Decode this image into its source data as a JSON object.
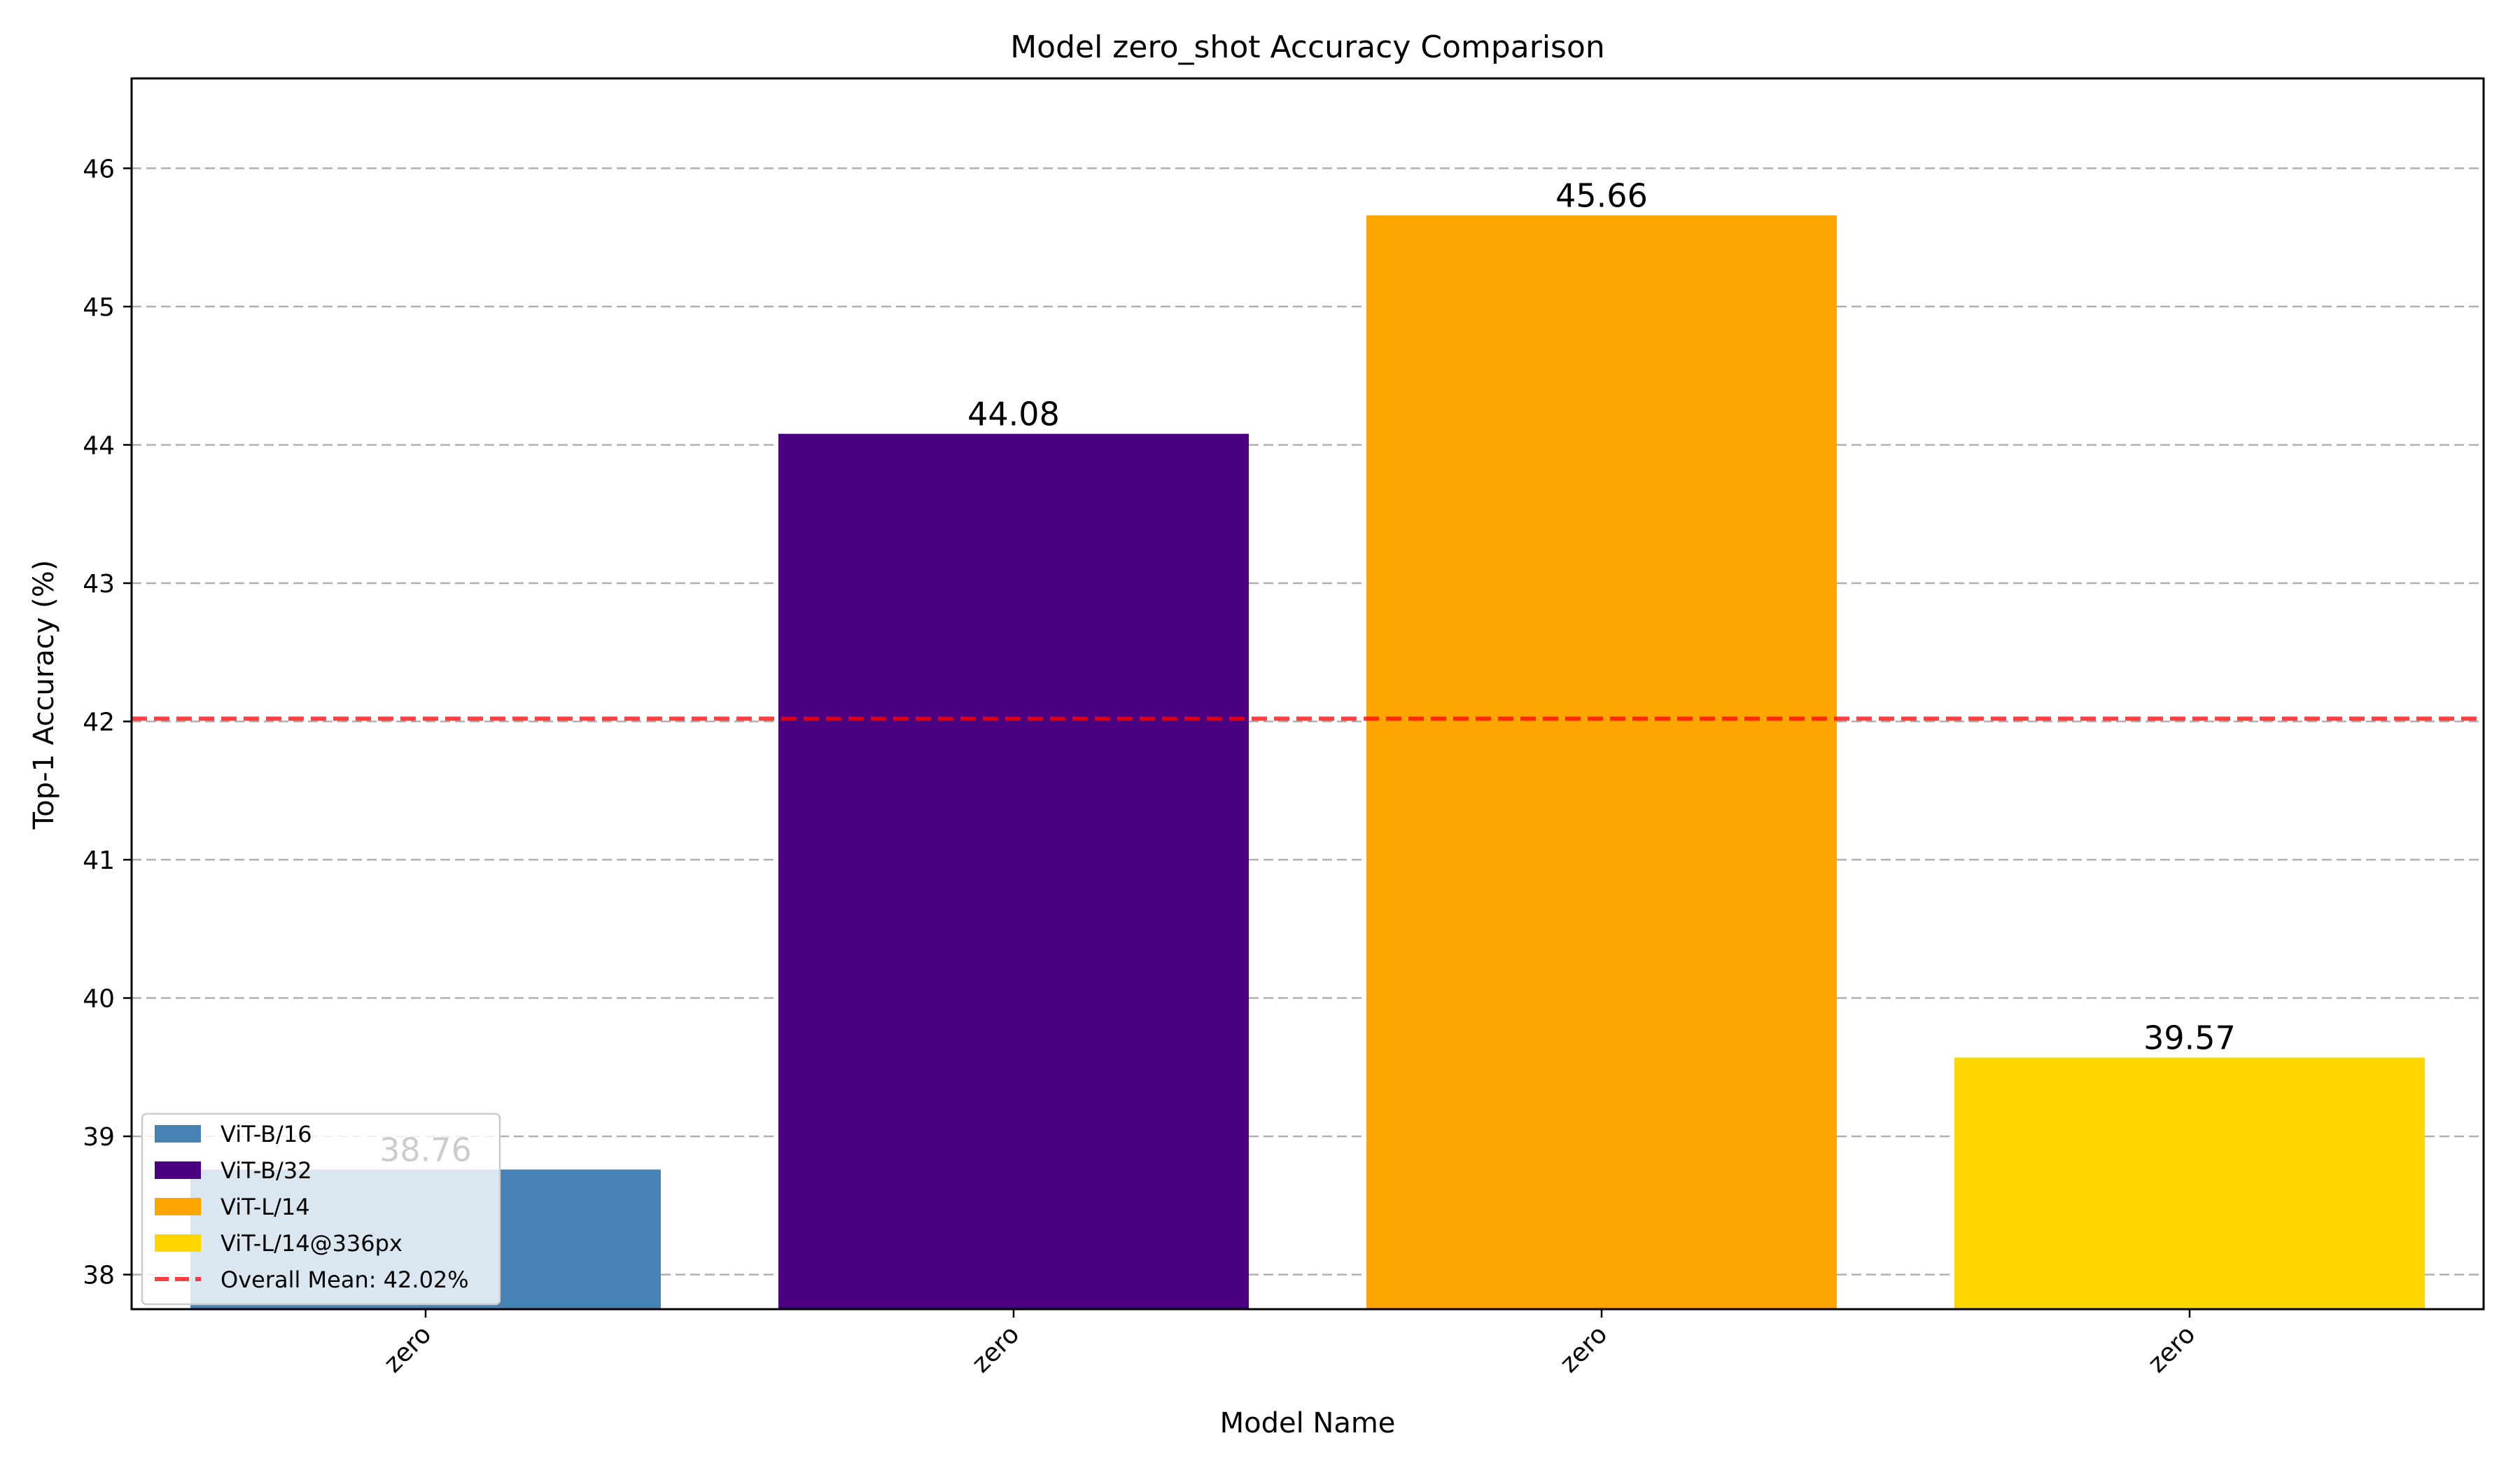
{
  "chart_data": {
    "type": "bar",
    "title": "Model zero_shot Accuracy Comparison",
    "xlabel": "Model Name",
    "ylabel": "Top-1 Accuracy (%)",
    "categories": [
      "zero",
      "zero",
      "zero",
      "zero"
    ],
    "values": [
      38.76,
      44.08,
      45.66,
      39.57
    ],
    "value_labels": [
      "38.76",
      "44.08",
      "45.66",
      "39.57"
    ],
    "colors": [
      "#4682b4",
      "#4b0082",
      "#ffa500",
      "#ffd700"
    ],
    "ylim": [
      37.75,
      46.65
    ],
    "yticks": [
      38,
      39,
      40,
      41,
      42,
      43,
      44,
      45,
      46
    ],
    "grid": "y-dashed",
    "mean_line": {
      "value": 42.02,
      "color": "#ff0000",
      "style": "dashed"
    },
    "legend": {
      "placement": "lower-left",
      "entries": [
        {
          "label": "ViT-B/16",
          "color": "#4682b4",
          "kind": "patch"
        },
        {
          "label": "ViT-B/32",
          "color": "#4b0082",
          "kind": "patch"
        },
        {
          "label": "ViT-L/14",
          "color": "#ffa500",
          "kind": "patch"
        },
        {
          "label": "ViT-L/14@336px",
          "color": "#ffd700",
          "kind": "patch"
        },
        {
          "label": "Overall Mean: 42.02%",
          "color": "#ff0000",
          "kind": "dashed-line"
        }
      ]
    }
  }
}
